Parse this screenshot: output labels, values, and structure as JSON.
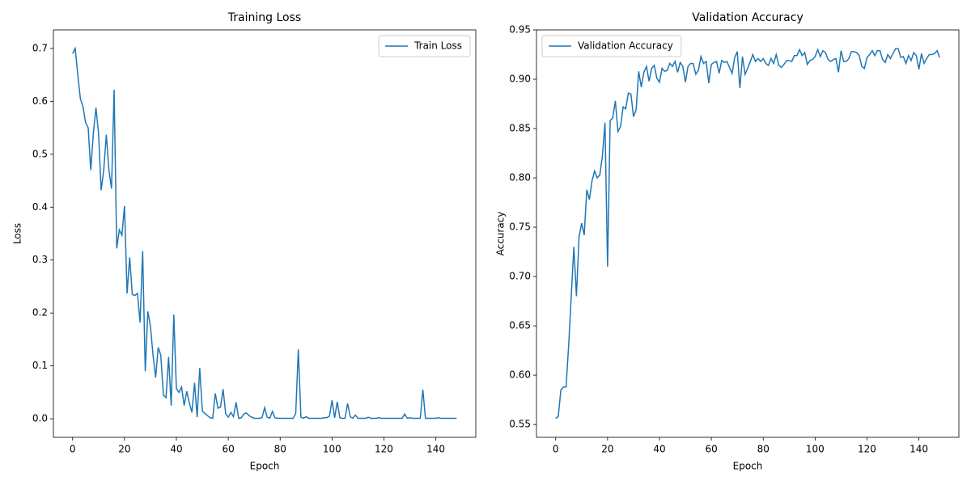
{
  "chart_data": [
    {
      "type": "line",
      "title": "Training Loss",
      "x_label": "Epoch",
      "y_label": "Loss",
      "legend": "upper right",
      "x": [
        0,
        1,
        2,
        3,
        4,
        5,
        6,
        7,
        8,
        9,
        10,
        11,
        12,
        13,
        14,
        15,
        16,
        17,
        18,
        19,
        20,
        21,
        22,
        23,
        24,
        25,
        26,
        27,
        28,
        29,
        30,
        31,
        32,
        33,
        34,
        35,
        36,
        37,
        38,
        39,
        40,
        41,
        42,
        43,
        44,
        45,
        46,
        47,
        48,
        49,
        50,
        51,
        52,
        53,
        54,
        55,
        56,
        57,
        58,
        59,
        60,
        61,
        62,
        63,
        64,
        65,
        66,
        67,
        68,
        69,
        70,
        71,
        72,
        73,
        74,
        75,
        76,
        77,
        78,
        79,
        80,
        81,
        82,
        83,
        84,
        85,
        86,
        87,
        88,
        89,
        90,
        91,
        92,
        93,
        94,
        95,
        96,
        97,
        98,
        99,
        100,
        101,
        102,
        103,
        104,
        105,
        106,
        107,
        108,
        109,
        110,
        111,
        112,
        113,
        114,
        115,
        116,
        117,
        118,
        119,
        120,
        121,
        122,
        123,
        124,
        125,
        126,
        127,
        128,
        129,
        130,
        131,
        132,
        133,
        134,
        135,
        136,
        137,
        138,
        139,
        140,
        141,
        142,
        143,
        144,
        145,
        146,
        147,
        148
      ],
      "series": [
        {
          "name": "Train Loss",
          "color": "#1f77b4",
          "values": [
            0.69,
            0.7,
            0.65,
            0.605,
            0.59,
            0.56,
            0.55,
            0.47,
            0.54,
            0.588,
            0.54,
            0.432,
            0.47,
            0.537,
            0.47,
            0.435,
            0.622,
            0.322,
            0.357,
            0.347,
            0.402,
            0.237,
            0.305,
            0.235,
            0.233,
            0.237,
            0.182,
            0.317,
            0.09,
            0.203,
            0.175,
            0.12,
            0.078,
            0.135,
            0.12,
            0.045,
            0.04,
            0.117,
            0.025,
            0.197,
            0.057,
            0.05,
            0.06,
            0.025,
            0.052,
            0.03,
            0.012,
            0.068,
            0.003,
            0.096,
            0.015,
            0.01,
            0.006,
            0.002,
            0.001,
            0.048,
            0.02,
            0.022,
            0.056,
            0.01,
            0.003,
            0.012,
            0.004,
            0.031,
            0.001,
            0.002,
            0.009,
            0.011,
            0.006,
            0.003,
            0.001,
            0.001,
            0.001,
            0.002,
            0.021,
            0.003,
            0.001,
            0.014,
            0.002,
            0.001,
            0.001,
            0.001,
            0.001,
            0.001,
            0.001,
            0.001,
            0.01,
            0.131,
            0.003,
            0.001,
            0.004,
            0.001,
            0.001,
            0.001,
            0.001,
            0.001,
            0.001,
            0.002,
            0.002,
            0.005,
            0.035,
            0.002,
            0.032,
            0.002,
            0.001,
            0.001,
            0.029,
            0.004,
            0.001,
            0.007,
            0.001,
            0.001,
            0.001,
            0.001,
            0.003,
            0.001,
            0.001,
            0.001,
            0.002,
            0.001,
            0.001,
            0.001,
            0.001,
            0.001,
            0.001,
            0.001,
            0.001,
            0.001,
            0.009,
            0.001,
            0.002,
            0.001,
            0.001,
            0.001,
            0.001,
            0.055,
            0.001,
            0.001,
            0.001,
            0.001,
            0.001,
            0.002,
            0.001,
            0.001,
            0.001,
            0.001,
            0.001,
            0.001,
            0.001
          ]
        }
      ],
      "xlim": [
        -7.4,
        155.4
      ],
      "xticks": [
        0,
        20,
        40,
        60,
        80,
        100,
        120,
        140
      ],
      "ylim": [
        -0.035,
        0.735
      ],
      "yticks": [
        {
          "value": 0,
          "label": "0.0"
        },
        0.1,
        0.2,
        0.3,
        0.4,
        0.5,
        0.6,
        0.7
      ]
    },
    {
      "type": "line",
      "title": "Validation Accuracy",
      "x_label": "Epoch",
      "y_label": "Accuracy",
      "legend": "upper left",
      "x": [
        0,
        1,
        2,
        3,
        4,
        5,
        6,
        7,
        8,
        9,
        10,
        11,
        12,
        13,
        14,
        15,
        16,
        17,
        18,
        19,
        20,
        21,
        22,
        23,
        24,
        25,
        26,
        27,
        28,
        29,
        30,
        31,
        32,
        33,
        34,
        35,
        36,
        37,
        38,
        39,
        40,
        41,
        42,
        43,
        44,
        45,
        46,
        47,
        48,
        49,
        50,
        51,
        52,
        53,
        54,
        55,
        56,
        57,
        58,
        59,
        60,
        61,
        62,
        63,
        64,
        65,
        66,
        67,
        68,
        69,
        70,
        71,
        72,
        73,
        74,
        75,
        76,
        77,
        78,
        79,
        80,
        81,
        82,
        83,
        84,
        85,
        86,
        87,
        88,
        89,
        90,
        91,
        92,
        93,
        94,
        95,
        96,
        97,
        98,
        99,
        100,
        101,
        102,
        103,
        104,
        105,
        106,
        107,
        108,
        109,
        110,
        111,
        112,
        113,
        114,
        115,
        116,
        117,
        118,
        119,
        120,
        121,
        122,
        123,
        124,
        125,
        126,
        127,
        128,
        129,
        130,
        131,
        132,
        133,
        134,
        135,
        136,
        137,
        138,
        139,
        140,
        141,
        142,
        143,
        144,
        145,
        146,
        147,
        148
      ],
      "series": [
        {
          "name": "Validation Accuracy",
          "color": "#1f77b4",
          "values": [
            0.556,
            0.558,
            0.585,
            0.588,
            0.588,
            0.63,
            0.68,
            0.73,
            0.68,
            0.74,
            0.754,
            0.742,
            0.788,
            0.778,
            0.797,
            0.807,
            0.8,
            0.803,
            0.822,
            0.856,
            0.71,
            0.858,
            0.861,
            0.878,
            0.847,
            0.852,
            0.872,
            0.87,
            0.886,
            0.885,
            0.862,
            0.869,
            0.908,
            0.892,
            0.907,
            0.913,
            0.898,
            0.911,
            0.914,
            0.901,
            0.897,
            0.911,
            0.908,
            0.909,
            0.916,
            0.913,
            0.918,
            0.907,
            0.917,
            0.913,
            0.897,
            0.913,
            0.916,
            0.916,
            0.905,
            0.909,
            0.923,
            0.916,
            0.918,
            0.896,
            0.915,
            0.917,
            0.918,
            0.906,
            0.919,
            0.917,
            0.918,
            0.912,
            0.906,
            0.922,
            0.928,
            0.891,
            0.923,
            0.905,
            0.911,
            0.918,
            0.925,
            0.918,
            0.921,
            0.918,
            0.921,
            0.916,
            0.914,
            0.921,
            0.916,
            0.925,
            0.914,
            0.912,
            0.915,
            0.919,
            0.919,
            0.918,
            0.924,
            0.924,
            0.93,
            0.924,
            0.927,
            0.915,
            0.919,
            0.92,
            0.923,
            0.93,
            0.923,
            0.929,
            0.927,
            0.92,
            0.918,
            0.92,
            0.921,
            0.907,
            0.929,
            0.918,
            0.918,
            0.921,
            0.928,
            0.928,
            0.927,
            0.924,
            0.913,
            0.911,
            0.922,
            0.925,
            0.929,
            0.924,
            0.929,
            0.929,
            0.92,
            0.917,
            0.925,
            0.921,
            0.926,
            0.931,
            0.931,
            0.922,
            0.923,
            0.916,
            0.924,
            0.919,
            0.927,
            0.924,
            0.91,
            0.926,
            0.916,
            0.921,
            0.925,
            0.925,
            0.926,
            0.929,
            0.922
          ]
        }
      ],
      "xlim": [
        -7.4,
        155.4
      ],
      "xticks": [
        0,
        20,
        40,
        60,
        80,
        100,
        120,
        140
      ],
      "ylim": [
        0.537,
        0.95
      ],
      "yticks": [
        0.55,
        {
          "value": 0.6,
          "label": "0.60"
        },
        0.65,
        {
          "value": 0.7,
          "label": "0.70"
        },
        0.75,
        {
          "value": 0.8,
          "label": "0.80"
        },
        0.85,
        {
          "value": 0.9,
          "label": "0.90"
        },
        0.95
      ]
    }
  ]
}
